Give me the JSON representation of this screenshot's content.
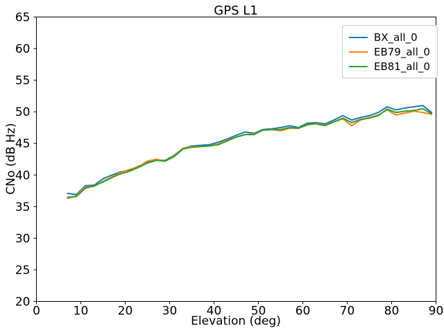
{
  "figure": {
    "background": "#ffffff",
    "spine_color": "#000000"
  },
  "chart_data": {
    "type": "line",
    "title": "GPS L1",
    "xlabel": "Elevation (deg)",
    "ylabel": "CNo (dB Hz)",
    "xlim": [
      0,
      90
    ],
    "ylim": [
      20,
      65
    ],
    "x_ticks": [
      0,
      10,
      20,
      30,
      40,
      50,
      60,
      70,
      80,
      90
    ],
    "y_ticks": [
      20,
      25,
      30,
      35,
      40,
      45,
      50,
      55,
      60,
      65
    ],
    "grid": false,
    "legend_position": "upper right",
    "x": [
      7,
      9,
      11,
      13,
      15,
      17,
      19,
      21,
      23,
      25,
      27,
      29,
      31,
      33,
      35,
      37,
      39,
      41,
      43,
      45,
      47,
      49,
      51,
      53,
      55,
      57,
      59,
      61,
      63,
      65,
      67,
      69,
      71,
      73,
      75,
      77,
      79,
      81,
      83,
      85,
      87,
      89
    ],
    "series": [
      {
        "name": "BX_all_0",
        "color": "#1f77b4",
        "values": [
          37.1,
          36.9,
          38.3,
          38.4,
          39.4,
          40.0,
          40.5,
          40.8,
          41.4,
          42.0,
          42.4,
          42.3,
          43.1,
          44.2,
          44.6,
          44.7,
          44.8,
          45.2,
          45.7,
          46.3,
          46.8,
          46.6,
          47.2,
          47.3,
          47.5,
          47.8,
          47.5,
          48.2,
          48.3,
          48.1,
          48.7,
          49.4,
          48.7,
          49.1,
          49.4,
          49.9,
          50.8,
          50.3,
          50.6,
          50.8,
          51.0,
          49.9
        ]
      },
      {
        "name": "EB79_all_0",
        "color": "#ff7f0e",
        "values": [
          36.3,
          36.7,
          38.1,
          38.2,
          39.0,
          39.7,
          40.4,
          40.9,
          41.3,
          42.2,
          42.5,
          42.2,
          43.0,
          44.2,
          44.5,
          44.5,
          44.6,
          44.9,
          45.5,
          46.0,
          46.4,
          46.5,
          47.1,
          47.2,
          47.0,
          47.4,
          47.4,
          47.9,
          48.2,
          47.9,
          48.4,
          48.9,
          47.8,
          48.7,
          49.1,
          49.5,
          50.3,
          49.5,
          49.8,
          50.1,
          49.9,
          49.6
        ]
      },
      {
        "name": "EB81_all_0",
        "color": "#2ca02c",
        "values": [
          36.5,
          36.6,
          37.9,
          38.3,
          38.9,
          39.6,
          40.2,
          40.6,
          41.2,
          41.9,
          42.3,
          42.2,
          42.9,
          44.1,
          44.4,
          44.5,
          44.6,
          44.8,
          45.4,
          46.0,
          46.4,
          46.4,
          47.1,
          47.2,
          47.2,
          47.5,
          47.4,
          48.0,
          48.1,
          47.8,
          48.4,
          49.0,
          48.3,
          48.8,
          49.0,
          49.4,
          50.4,
          49.9,
          50.1,
          50.2,
          50.5,
          49.7
        ]
      }
    ]
  }
}
